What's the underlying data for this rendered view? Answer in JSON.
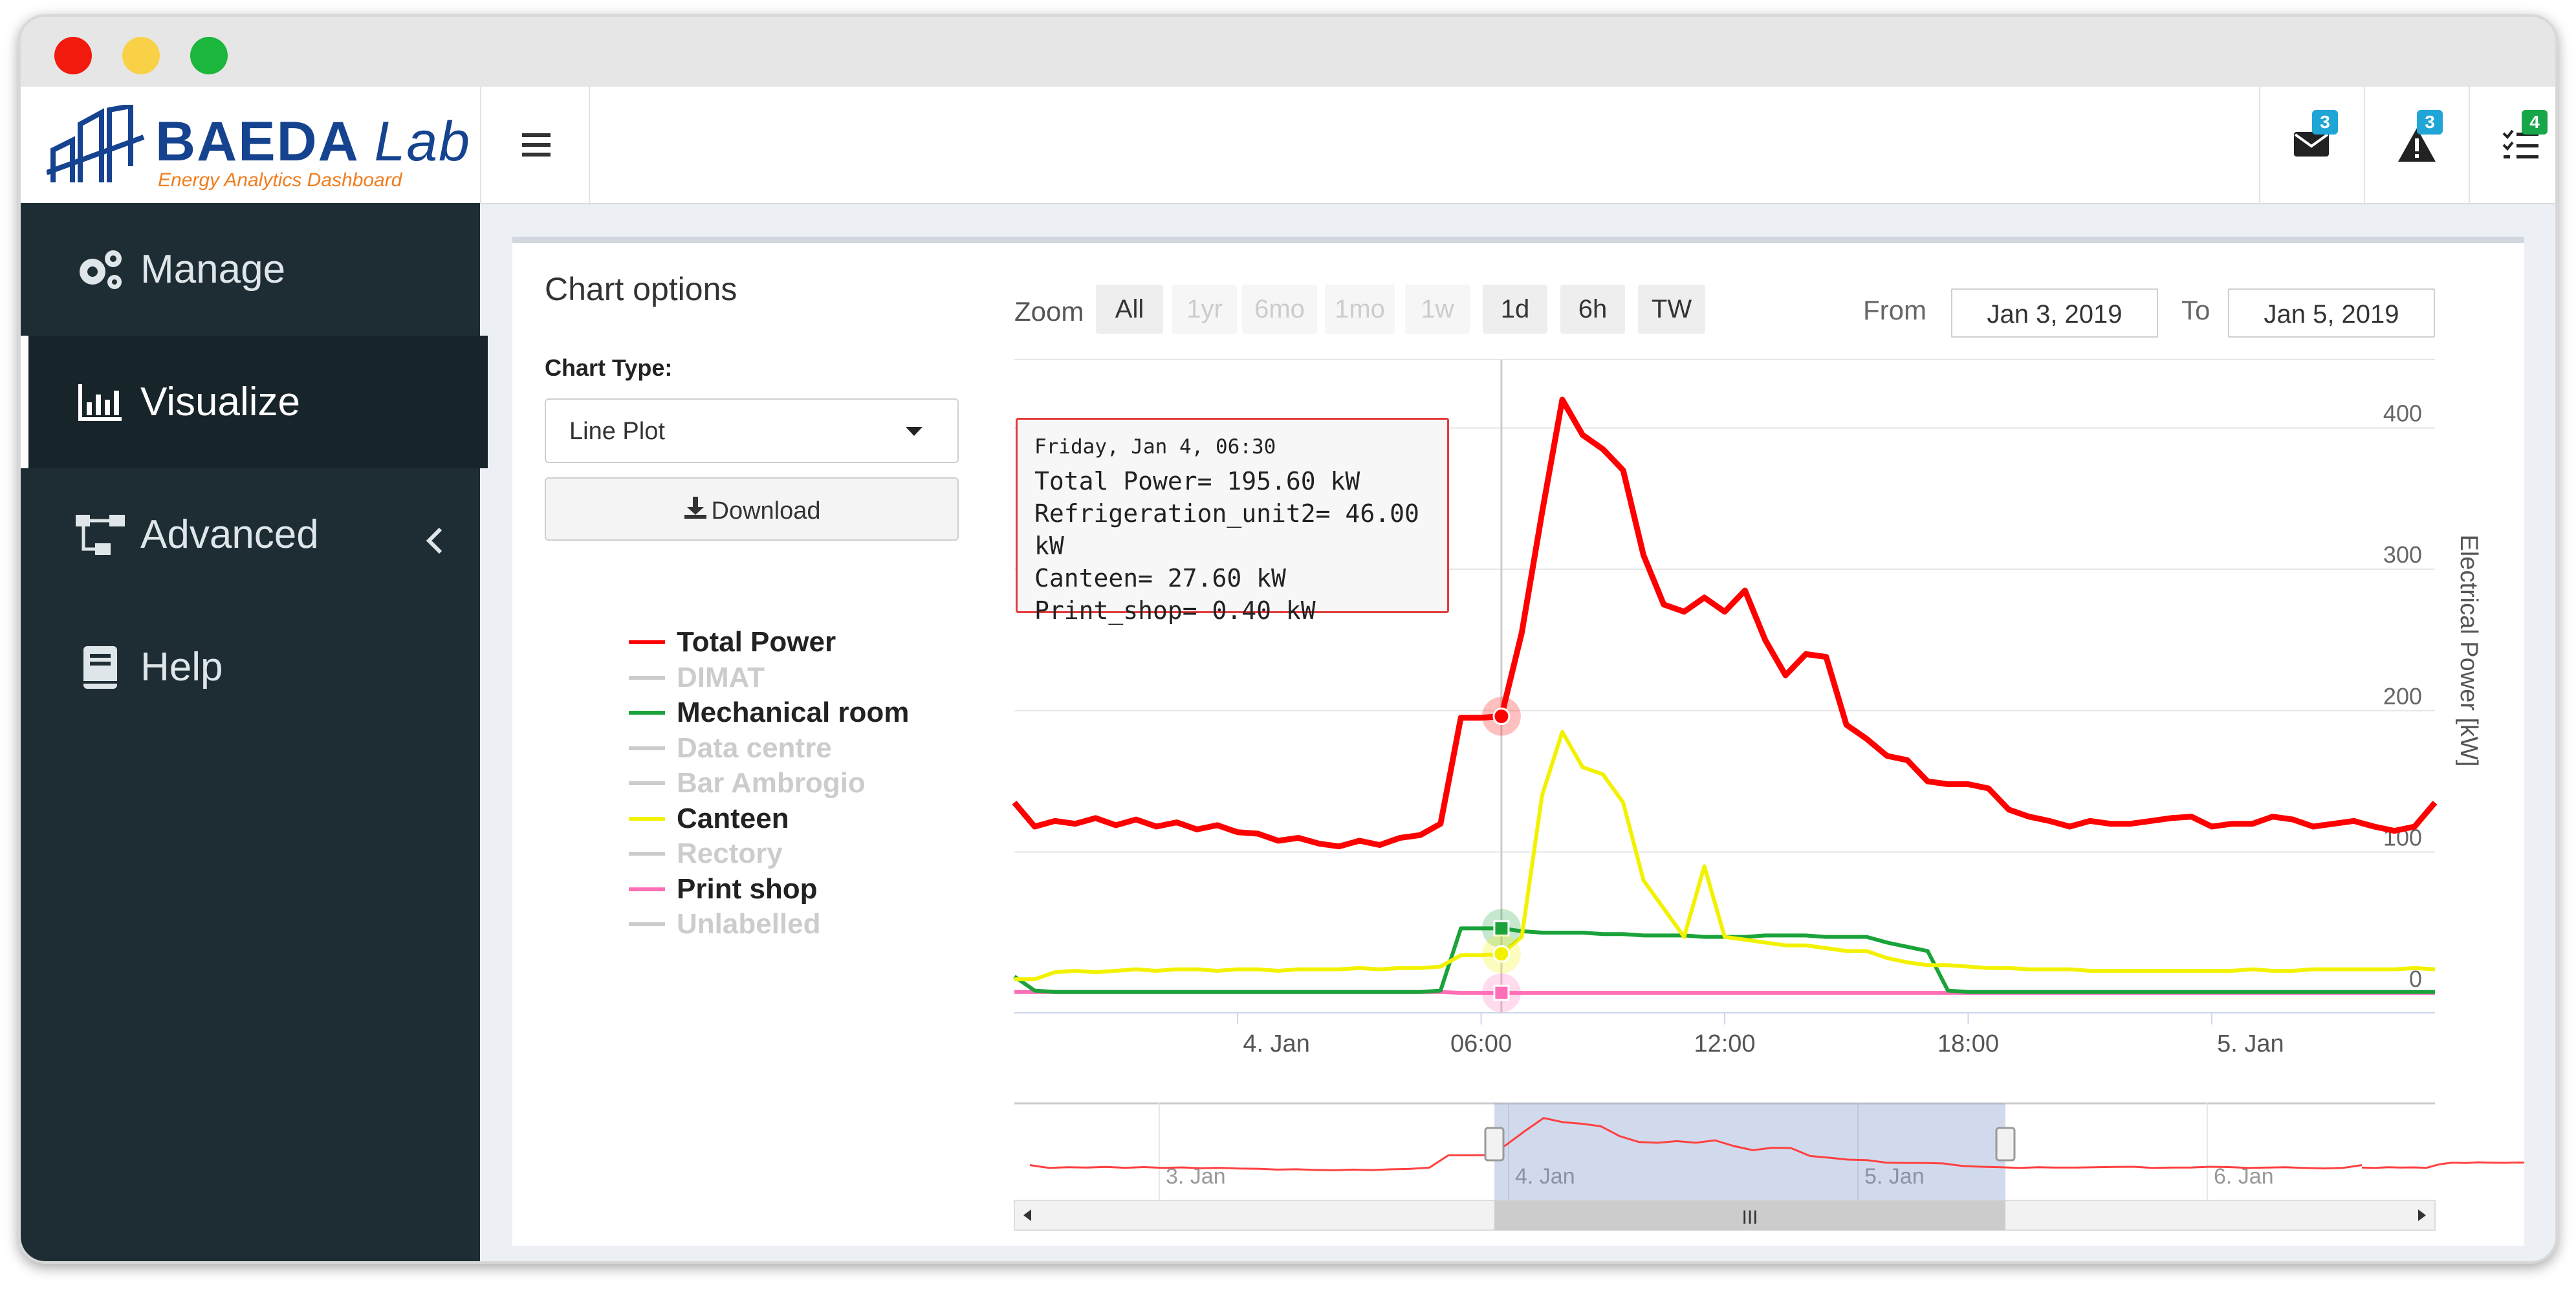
{
  "app": {
    "logo_title": "BAEDA",
    "logo_lab": "Lab",
    "logo_subtitle": "Energy Analytics Dashboard"
  },
  "topbar": {
    "menu_icon": "hamburger-icon",
    "notifications": [
      {
        "icon": "envelope-icon",
        "count": "3",
        "color": "#1fa5d6"
      },
      {
        "icon": "warning-icon",
        "count": "3",
        "color": "#1fa5d6"
      },
      {
        "icon": "tasks-icon",
        "count": "4",
        "color": "#17a64a"
      }
    ]
  },
  "sidebar": {
    "items": [
      {
        "label": "Manage",
        "icon": "gears-icon"
      },
      {
        "label": "Visualize",
        "icon": "bar-chart-icon",
        "active": true
      },
      {
        "label": "Advanced",
        "icon": "sitemap-icon",
        "chevron": "chevron-left-icon"
      },
      {
        "label": "Help",
        "icon": "book-icon"
      }
    ]
  },
  "options": {
    "title": "Chart options",
    "chart_type_label": "Chart Type:",
    "chart_type_value": "Line Plot",
    "download_label": "Download"
  },
  "legend": [
    {
      "label": "Total Power",
      "color": "#ff0000",
      "active": true
    },
    {
      "label": "DIMAT",
      "color": "#cccccc",
      "active": false
    },
    {
      "label": "Mechanical room",
      "color": "#1aa33a",
      "active": true
    },
    {
      "label": "Data centre",
      "color": "#cccccc",
      "active": false
    },
    {
      "label": "Bar Ambrogio",
      "color": "#cccccc",
      "active": false
    },
    {
      "label": "Canteen",
      "color": "#f2f200",
      "active": true
    },
    {
      "label": "Rectory",
      "color": "#cccccc",
      "active": false
    },
    {
      "label": "Print shop",
      "color": "#ff6fb7",
      "active": true
    },
    {
      "label": "Unlabelled",
      "color": "#cccccc",
      "active": false
    }
  ],
  "zoom": {
    "label": "Zoom",
    "buttons": [
      {
        "label": "All",
        "enabled": true
      },
      {
        "label": "1yr",
        "enabled": false
      },
      {
        "label": "6mo",
        "enabled": false
      },
      {
        "label": "1mo",
        "enabled": false
      },
      {
        "label": "1w",
        "enabled": false
      },
      {
        "label": "1d",
        "enabled": true
      },
      {
        "label": "6h",
        "enabled": true
      },
      {
        "label": "TW",
        "enabled": true
      }
    ],
    "from_label": "From",
    "from_value": "Jan 3, 2019",
    "to_label": "To",
    "to_value": "Jan 5, 2019"
  },
  "tooltip": {
    "header": "Friday, Jan 4, 06:30",
    "lines": [
      "Total Power= 195.60 kW",
      "Refrigeration_unit2= 46.00 kW",
      "Canteen= 27.60 kW",
      "Print_shop= 0.40 kW"
    ]
  },
  "navigator": {
    "labels": [
      "3. Jan",
      "4. Jan",
      "5. Jan",
      "6. Jan"
    ],
    "scrollbar_grip": "III"
  },
  "chart_data": {
    "type": "line",
    "ylabel": "Electrical Power [kW]",
    "ylim": [
      0,
      430
    ],
    "yticks": [
      0,
      100,
      200,
      300,
      400
    ],
    "x_ticks": [
      "4. Jan",
      "06:00",
      "12:00",
      "18:00",
      "5. Jan"
    ],
    "x_tick_hours": [
      0,
      6,
      12,
      18,
      24
    ],
    "x_range_hours": [
      -5.5,
      29.5
    ],
    "crosshair_hour": 6.5,
    "x_hours": [
      -5.5,
      -5,
      -4.5,
      -4,
      -3.5,
      -3,
      -2.5,
      -2,
      -1.5,
      -1,
      -0.5,
      0,
      0.5,
      1,
      1.5,
      2,
      2.5,
      3,
      3.5,
      4,
      4.5,
      5,
      5.5,
      6,
      6.5,
      7,
      7.5,
      8,
      8.5,
      9,
      9.5,
      10,
      10.5,
      11,
      11.5,
      12,
      12.5,
      13,
      13.5,
      14,
      14.5,
      15,
      15.5,
      16,
      16.5,
      17,
      17.5,
      18,
      18.5,
      19,
      19.5,
      20,
      20.5,
      21,
      21.5,
      22,
      22.5,
      23,
      23.5,
      24,
      24.5,
      25,
      25.5,
      26,
      26.5,
      27,
      27.5,
      28,
      28.5,
      29,
      29.5
    ],
    "series": [
      {
        "name": "Total Power",
        "color": "#ff0000",
        "values": [
          135,
          118,
          122,
          120,
          124,
          119,
          123,
          118,
          121,
          116,
          119,
          114,
          113,
          108,
          110,
          106,
          104,
          108,
          105,
          110,
          112,
          120,
          195,
          195,
          196,
          255,
          340,
          420,
          395,
          385,
          370,
          310,
          275,
          270,
          280,
          270,
          285,
          250,
          225,
          240,
          238,
          190,
          180,
          168,
          165,
          150,
          148,
          148,
          145,
          130,
          125,
          122,
          118,
          122,
          120,
          120,
          122,
          124,
          125,
          118,
          120,
          120,
          125,
          123,
          118,
          120,
          122,
          118,
          115,
          118,
          135
        ]
      },
      {
        "name": "Mechanical room",
        "color": "#1aa33a",
        "values": [
          12,
          2,
          1,
          1,
          1,
          1,
          1,
          1,
          1,
          1,
          1,
          1,
          1,
          1,
          1,
          1,
          1,
          1,
          1,
          1,
          1,
          2,
          46,
          46,
          46,
          44,
          43,
          43,
          43,
          42,
          42,
          41,
          41,
          41,
          40,
          40,
          40,
          41,
          41,
          41,
          40,
          40,
          40,
          36,
          33,
          30,
          2,
          1,
          1,
          1,
          1,
          1,
          1,
          1,
          1,
          1,
          1,
          1,
          1,
          1,
          1,
          1,
          1,
          1,
          1,
          1,
          1,
          1,
          1,
          1,
          1
        ]
      },
      {
        "name": "Canteen",
        "color": "#f2f200",
        "values": [
          10,
          10,
          15,
          16,
          15,
          16,
          17,
          16,
          17,
          17,
          16,
          17,
          17,
          16,
          17,
          17,
          17,
          18,
          17,
          18,
          18,
          19,
          27,
          27,
          28,
          40,
          140,
          185,
          160,
          155,
          135,
          80,
          60,
          40,
          90,
          40,
          38,
          36,
          34,
          34,
          32,
          30,
          30,
          25,
          22,
          20,
          20,
          19,
          18,
          18,
          17,
          17,
          17,
          16,
          16,
          16,
          16,
          16,
          16,
          16,
          16,
          17,
          16,
          16,
          17,
          17,
          17,
          17,
          17,
          18,
          17
        ]
      },
      {
        "name": "Print shop",
        "color": "#ff6fb7",
        "values": [
          1,
          1,
          1,
          1,
          1,
          1,
          1,
          1,
          1,
          1,
          1,
          1,
          1,
          1,
          1,
          1,
          1,
          1,
          1,
          1,
          1,
          1,
          0.4,
          0.4,
          0.4,
          0.4,
          0.4,
          0.4,
          0.4,
          0.4,
          0.4,
          0.4,
          0.4,
          0.4,
          0.4,
          0.4,
          0.4,
          0.4,
          0.4,
          0.4,
          0.4,
          0.4,
          0.4,
          0.4,
          0.4,
          0.4,
          0.4,
          0.4,
          0.4,
          0.4,
          0.4,
          0.4,
          0.4,
          0.4,
          0.4,
          0.4,
          0.4,
          0.4,
          0.4,
          0.4,
          0.4,
          0.4,
          0.4,
          0.4,
          0.4,
          0.4,
          0.4,
          0.4,
          0.4,
          0.4,
          0.4
        ]
      }
    ]
  }
}
